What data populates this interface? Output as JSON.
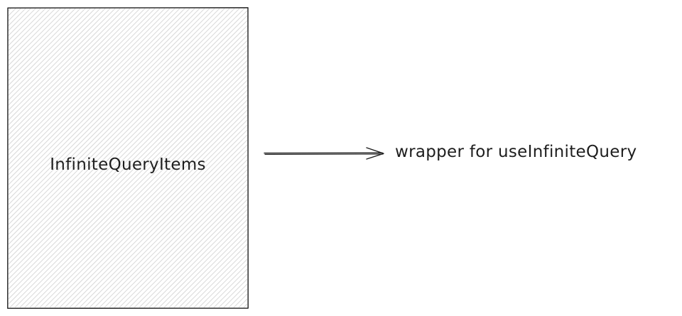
{
  "diagram": {
    "box": {
      "label": "InfiniteQueryItems",
      "fill_color": "#d9d9d9",
      "stroke_color": "#1e1e1e",
      "fill_style": "hachure"
    },
    "connector": {
      "style": "arrow",
      "stroke_color": "#1e1e1e"
    },
    "note": {
      "label": "wrapper for useInfiniteQuery"
    }
  }
}
